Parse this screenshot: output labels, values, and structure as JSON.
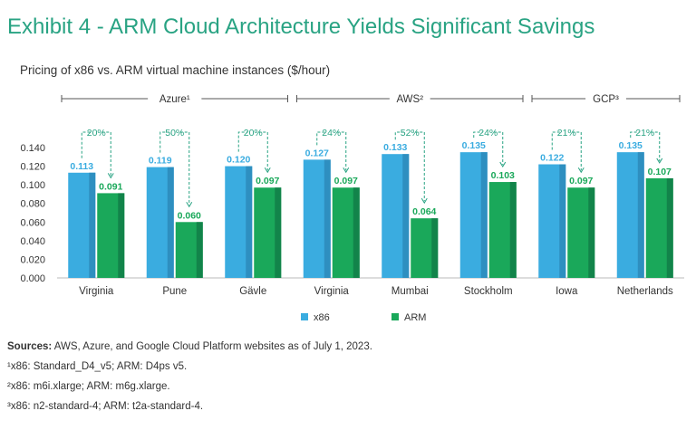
{
  "exhibit": {
    "title": "Exhibit 4 - ARM Cloud Architecture Yields Significant Savings",
    "subtitle": "Pricing of x86 vs. ARM virtual machine instances ($/hour)"
  },
  "colors": {
    "x86": "#3aace0",
    "x86_dark": "#2e8fc0",
    "arm": "#1aa85a",
    "arm_dark": "#12844a",
    "accent": "#29a383",
    "bracket": "#555555"
  },
  "chart_data": {
    "type": "bar",
    "title": "Pricing of x86 vs. ARM virtual machine instances ($/hour)",
    "xlabel": "",
    "ylabel": "$/hour",
    "ylim": [
      0,
      0.14
    ],
    "yticks": [
      "0.000",
      "0.020",
      "0.040",
      "0.060",
      "0.080",
      "0.100",
      "0.120",
      "0.140"
    ],
    "categories": [
      "Virginia",
      "Pune",
      "Gävle",
      "Virginia",
      "Mumbai",
      "Stockholm",
      "Iowa",
      "Netherlands"
    ],
    "series": [
      {
        "name": "x86",
        "values": [
          0.113,
          0.119,
          0.12,
          0.127,
          0.133,
          0.135,
          0.122,
          0.135
        ],
        "labels": [
          "0.113",
          "0.119",
          "0.120",
          "0.127",
          "0.133",
          "0.135",
          "0.122",
          "0.135"
        ]
      },
      {
        "name": "ARM",
        "values": [
          0.091,
          0.06,
          0.097,
          0.097,
          0.064,
          0.103,
          0.097,
          0.107
        ],
        "labels": [
          "0.091",
          "0.060",
          "0.097",
          "0.097",
          "0.064",
          "0.103",
          "0.097",
          "0.107"
        ]
      }
    ],
    "savings": [
      "20%",
      "50%",
      "20%",
      "24%",
      "52%",
      "24%",
      "21%",
      "21%"
    ],
    "groups": [
      {
        "label": "Azure¹",
        "first": 0,
        "last": 2
      },
      {
        "label": "AWS²",
        "first": 3,
        "last": 5
      },
      {
        "label": "GCP³",
        "first": 6,
        "last": 7
      }
    ],
    "legend_position": "bottom-center",
    "grid": false
  },
  "footer": {
    "sources_label": "Sources:",
    "sources_text": " AWS, Azure, and Google Cloud Platform websites as of July 1, 2023.",
    "note1": "¹x86: Standard_D4_v5; ARM: D4ps v5.",
    "note2": "²x86: m6i.xlarge; ARM: m6g.xlarge.",
    "note3": "³x86: n2-standard-4; ARM: t2a-standard-4."
  }
}
